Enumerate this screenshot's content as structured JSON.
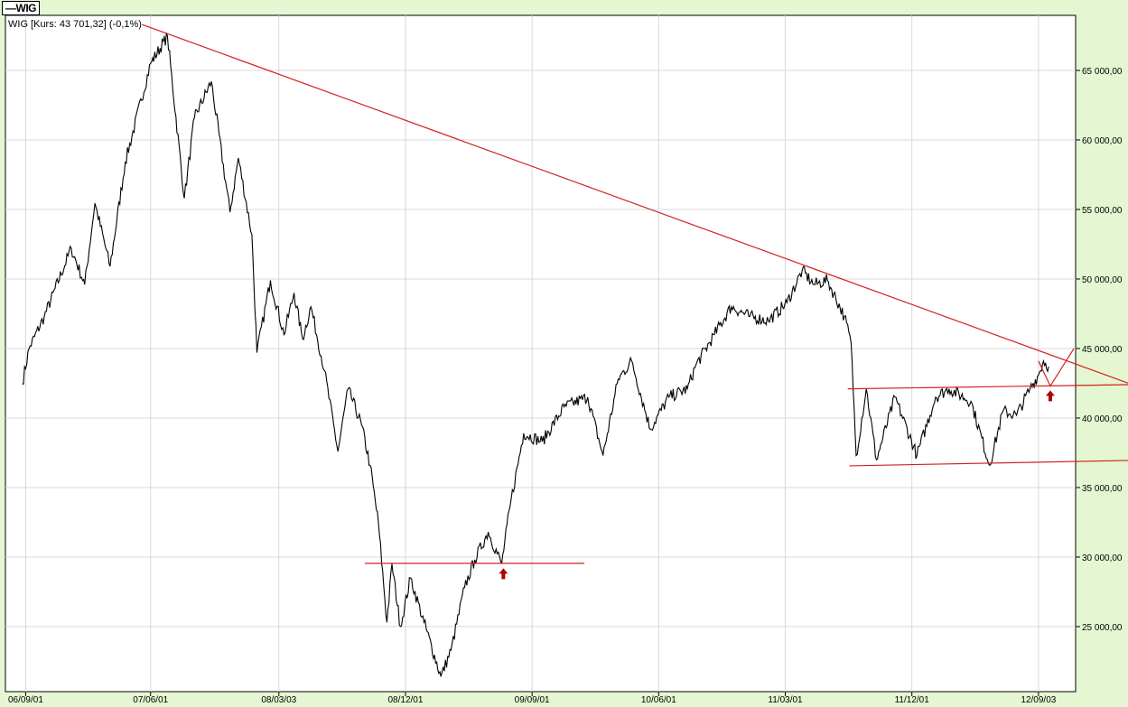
{
  "legend": {
    "label": "—WIG"
  },
  "chart_data": {
    "type": "line",
    "title": "WIG [Kurs: 43 701,32] (-0,1%)",
    "x_unit": "decimal year",
    "xlim": [
      2006.55,
      2012.89
    ],
    "ylim": [
      20320,
      68960
    ],
    "grid": true,
    "x_ticks": [
      {
        "x": 2006.67,
        "label": "06/09/01"
      },
      {
        "x": 2007.41,
        "label": "07/06/01"
      },
      {
        "x": 2008.17,
        "label": "08/03/03"
      },
      {
        "x": 2008.92,
        "label": "08/12/01"
      },
      {
        "x": 2009.67,
        "label": "09/09/01"
      },
      {
        "x": 2010.42,
        "label": "10/06/01"
      },
      {
        "x": 2011.17,
        "label": "11/03/01"
      },
      {
        "x": 2011.92,
        "label": "11/12/01"
      },
      {
        "x": 2012.67,
        "label": "12/09/03"
      }
    ],
    "y_ticks": [
      {
        "y": 25000,
        "label": "25 000,00"
      },
      {
        "y": 30000,
        "label": "30 000,00"
      },
      {
        "y": 35000,
        "label": "35 000,00"
      },
      {
        "y": 40000,
        "label": "40 000,00"
      },
      {
        "y": 45000,
        "label": "45 000,00"
      },
      {
        "y": 50000,
        "label": "50 000,00"
      },
      {
        "y": 55000,
        "label": "55 000,00"
      },
      {
        "y": 60000,
        "label": "60 000,00"
      },
      {
        "y": 65000,
        "label": "65 000,00"
      }
    ],
    "series": [
      {
        "name": "WIG",
        "color": "#000000",
        "points": [
          [
            2006.65,
            42470
          ],
          [
            2006.69,
            45000
          ],
          [
            2006.78,
            47300
          ],
          [
            2006.94,
            52200
          ],
          [
            2007.02,
            49600
          ],
          [
            2007.08,
            55450
          ],
          [
            2007.17,
            50900
          ],
          [
            2007.26,
            58400
          ],
          [
            2007.41,
            65500
          ],
          [
            2007.51,
            67470
          ],
          [
            2007.61,
            55800
          ],
          [
            2007.67,
            61600
          ],
          [
            2007.77,
            64200
          ],
          [
            2007.88,
            54800
          ],
          [
            2007.93,
            58700
          ],
          [
            2008.01,
            53200
          ],
          [
            2008.04,
            44700
          ],
          [
            2008.12,
            49900
          ],
          [
            2008.2,
            46000
          ],
          [
            2008.26,
            49000
          ],
          [
            2008.31,
            45700
          ],
          [
            2008.36,
            48000
          ],
          [
            2008.44,
            43400
          ],
          [
            2008.52,
            37600
          ],
          [
            2008.58,
            42100
          ],
          [
            2008.66,
            39500
          ],
          [
            2008.71,
            36600
          ],
          [
            2008.76,
            32400
          ],
          [
            2008.81,
            25300
          ],
          [
            2008.84,
            29500
          ],
          [
            2008.89,
            25000
          ],
          [
            2008.95,
            28500
          ],
          [
            2009.03,
            25300
          ],
          [
            2009.13,
            21400
          ],
          [
            2009.19,
            23300
          ],
          [
            2009.27,
            27800
          ],
          [
            2009.33,
            29800
          ],
          [
            2009.41,
            31800
          ],
          [
            2009.49,
            29500
          ],
          [
            2009.54,
            33700
          ],
          [
            2009.62,
            38900
          ],
          [
            2009.73,
            38300
          ],
          [
            2009.86,
            40800
          ],
          [
            2010.0,
            41500
          ],
          [
            2010.09,
            37300
          ],
          [
            2010.18,
            42800
          ],
          [
            2010.26,
            44100
          ],
          [
            2010.37,
            39200
          ],
          [
            2010.48,
            41500
          ],
          [
            2010.59,
            42100
          ],
          [
            2010.64,
            43800
          ],
          [
            2010.75,
            46000
          ],
          [
            2010.85,
            48000
          ],
          [
            2010.96,
            47300
          ],
          [
            2011.07,
            47000
          ],
          [
            2011.18,
            48300
          ],
          [
            2011.27,
            50600
          ],
          [
            2011.34,
            49600
          ],
          [
            2011.42,
            49900
          ],
          [
            2011.52,
            47300
          ],
          [
            2011.56,
            45400
          ],
          [
            2011.59,
            37300
          ],
          [
            2011.65,
            42100
          ],
          [
            2011.71,
            37000
          ],
          [
            2011.82,
            41500
          ],
          [
            2011.95,
            37300
          ],
          [
            2012.06,
            41500
          ],
          [
            2012.14,
            42100
          ],
          [
            2012.27,
            41200
          ],
          [
            2012.38,
            36600
          ],
          [
            2012.46,
            40500
          ],
          [
            2012.54,
            40200
          ],
          [
            2012.62,
            42100
          ],
          [
            2012.67,
            43100
          ],
          [
            2012.7,
            44100
          ],
          [
            2012.73,
            43701
          ]
        ]
      }
    ],
    "annotations": {
      "color": "#d42020",
      "lines": [
        {
          "name": "downtrend-line",
          "points": [
            [
              2007.36,
              68300
            ],
            [
              2013.21,
              42470
            ]
          ]
        },
        {
          "name": "support-line-29500",
          "points": [
            [
              2008.68,
              29550
            ],
            [
              2009.98,
              29550
            ]
          ]
        },
        {
          "name": "channel-top-line",
          "points": [
            [
              2011.54,
              42100
            ],
            [
              2013.21,
              42400
            ]
          ]
        },
        {
          "name": "channel-bottom-line",
          "points": [
            [
              2011.55,
              36560
            ],
            [
              2013.21,
              36950
            ]
          ]
        },
        {
          "name": "projection-line",
          "points": [
            [
              2012.67,
              44100
            ],
            [
              2012.74,
              42300
            ],
            [
              2012.88,
              45000
            ]
          ]
        }
      ],
      "arrows": [
        {
          "name": "buy-arrow-2009",
          "x": 2009.5,
          "y": 28800
        },
        {
          "name": "buy-arrow-2012",
          "x": 2012.74,
          "y": 41600
        }
      ],
      "arrow_color": "#b00000"
    }
  }
}
